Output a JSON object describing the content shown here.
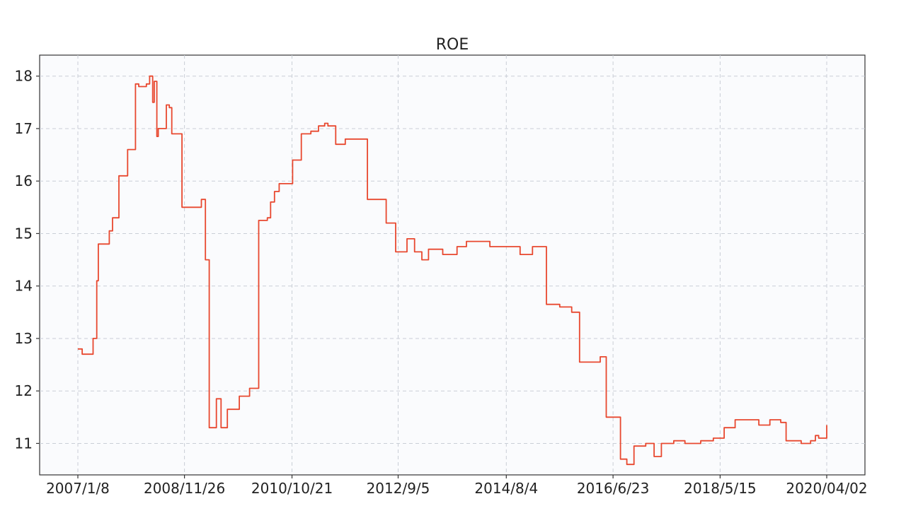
{
  "chart_data": {
    "type": "line",
    "title": "ROE",
    "xlabel": "",
    "ylabel": "",
    "x_ticks": [
      "2007/1/8",
      "2008/11/26",
      "2010/10/21",
      "2012/9/5",
      "2014/8/4",
      "2016/6/23",
      "2018/5/15",
      "2020/04/02"
    ],
    "y_ticks": [
      11,
      12,
      13,
      14,
      15,
      16,
      17,
      18
    ],
    "xlim": [
      "2007/1/8",
      "2020/04/02"
    ],
    "ylim": [
      10.4,
      18.4
    ],
    "grid": true,
    "series": [
      {
        "color": "#e8482f",
        "x": [
          "2007/1/8",
          "2007/2/5",
          "2007/4/16",
          "2007/5/10",
          "2007/5/20",
          "2007/6/10",
          "2007/7/30",
          "2007/8/20",
          "2007/9/30",
          "2007/10/20",
          "2007/11/25",
          "2008/1/15",
          "2008/2/5",
          "2008/3/25",
          "2008/4/15",
          "2008/5/5",
          "2008/5/15",
          "2008/6/1",
          "2008/6/10",
          "2008/7/1",
          "2008/8/1",
          "2008/8/20",
          "2008/9/5",
          "2008/11/10",
          "2009/1/10",
          "2009/3/15",
          "2009/4/10",
          "2009/5/5",
          "2009/5/25",
          "2009/6/20",
          "2009/7/20",
          "2009/8/30",
          "2009/9/30",
          "2009/11/15",
          "2010/1/20",
          "2010/3/20",
          "2010/5/15",
          "2010/6/5",
          "2010/6/30",
          "2010/7/30",
          "2010/9/5",
          "2010/10/25",
          "2010/12/20",
          "2011/2/20",
          "2011/4/10",
          "2011/5/20",
          "2011/6/10",
          "2011/7/30",
          "2011/8/30",
          "2011/9/30",
          "2011/12/20",
          "2012/2/20",
          "2012/4/20",
          "2012/6/20",
          "2012/8/20",
          "2012/10/1",
          "2012/11/1",
          "2012/12/20",
          "2013/2/5",
          "2013/3/20",
          "2013/6/20",
          "2013/9/20",
          "2013/11/20",
          "2014/1/20",
          "2014/4/20",
          "2014/6/20",
          "2014/9/10",
          "2014/11/1",
          "2015/1/20",
          "2015/4/20",
          "2015/7/15",
          "2015/9/30",
          "2015/11/20",
          "2016/1/20",
          "2016/4/1",
          "2016/5/10",
          "2016/6/23",
          "2016/8/10",
          "2016/9/20",
          "2016/11/5",
          "2017/1/20",
          "2017/3/15",
          "2017/5/1",
          "2017/7/20",
          "2017/9/30",
          "2018/1/10",
          "2018/4/1",
          "2018/6/10",
          "2018/8/20",
          "2018/11/10",
          "2019/1/20",
          "2019/4/1",
          "2019/6/10",
          "2019/7/15",
          "2019/10/20",
          "2019/12/20",
          "2020/1/20",
          "2020/02/10",
          "2020/04/02"
        ],
        "y": [
          12.8,
          12.7,
          13.0,
          14.1,
          14.8,
          14.8,
          15.05,
          15.3,
          16.1,
          16.1,
          16.6,
          17.85,
          17.8,
          17.85,
          18.0,
          17.5,
          17.9,
          16.85,
          17.0,
          17.0,
          17.45,
          17.4,
          16.9,
          15.5,
          15.5,
          15.65,
          14.5,
          11.3,
          11.3,
          11.85,
          11.3,
          11.65,
          11.65,
          11.9,
          12.05,
          15.25,
          15.3,
          15.6,
          15.8,
          15.95,
          15.95,
          16.4,
          16.9,
          16.95,
          17.05,
          17.1,
          17.05,
          16.7,
          16.7,
          16.8,
          16.8,
          15.65,
          15.65,
          15.2,
          14.65,
          14.65,
          14.9,
          14.65,
          14.5,
          14.7,
          14.6,
          14.75,
          14.85,
          14.85,
          14.75,
          14.75,
          14.75,
          14.6,
          14.75,
          13.65,
          13.6,
          13.5,
          12.55,
          12.55,
          12.65,
          11.5,
          11.5,
          10.7,
          10.6,
          10.95,
          11.0,
          10.75,
          11.0,
          11.05,
          11.0,
          11.05,
          11.1,
          11.3,
          11.45,
          11.45,
          11.35,
          11.45,
          11.4,
          11.05,
          11.0,
          11.05,
          11.15,
          11.1,
          11.35
        ]
      }
    ]
  }
}
